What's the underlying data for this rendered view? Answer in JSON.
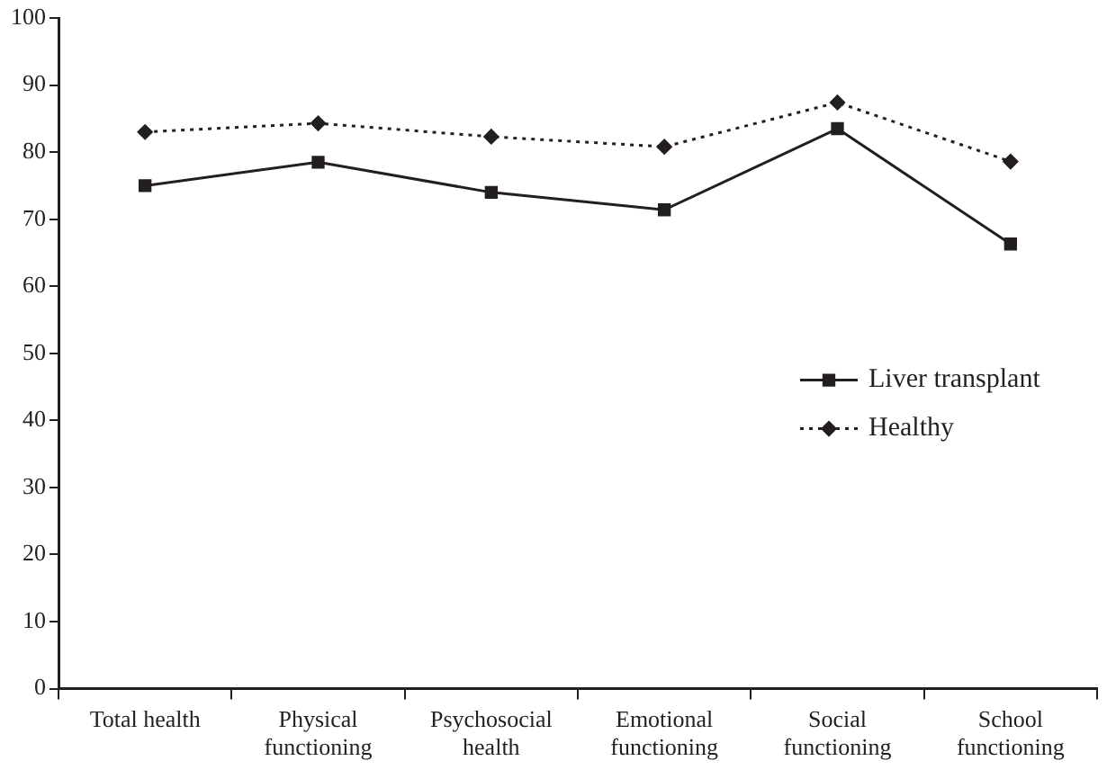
{
  "chart_data": {
    "type": "line",
    "categories": [
      "Total health",
      "Physical functioning",
      "Psychosocial health",
      "Emotional functioning",
      "Social functioning",
      "School functioning"
    ],
    "series": [
      {
        "name": "Liver transplant",
        "color": "#231f20",
        "marker": "square",
        "line_style": "solid",
        "values": [
          75,
          78.5,
          74,
          71.4,
          83.5,
          66.3
        ]
      },
      {
        "name": "Healthy",
        "color": "#231f20",
        "marker": "diamond",
        "line_style": "dotted",
        "values": [
          83,
          84.3,
          82.3,
          80.8,
          87.4,
          78.6
        ]
      }
    ],
    "ylim": [
      0,
      100
    ],
    "yticks": [
      0,
      10,
      20,
      30,
      40,
      50,
      60,
      70,
      80,
      90,
      100
    ],
    "grid": false,
    "legend": "right"
  }
}
